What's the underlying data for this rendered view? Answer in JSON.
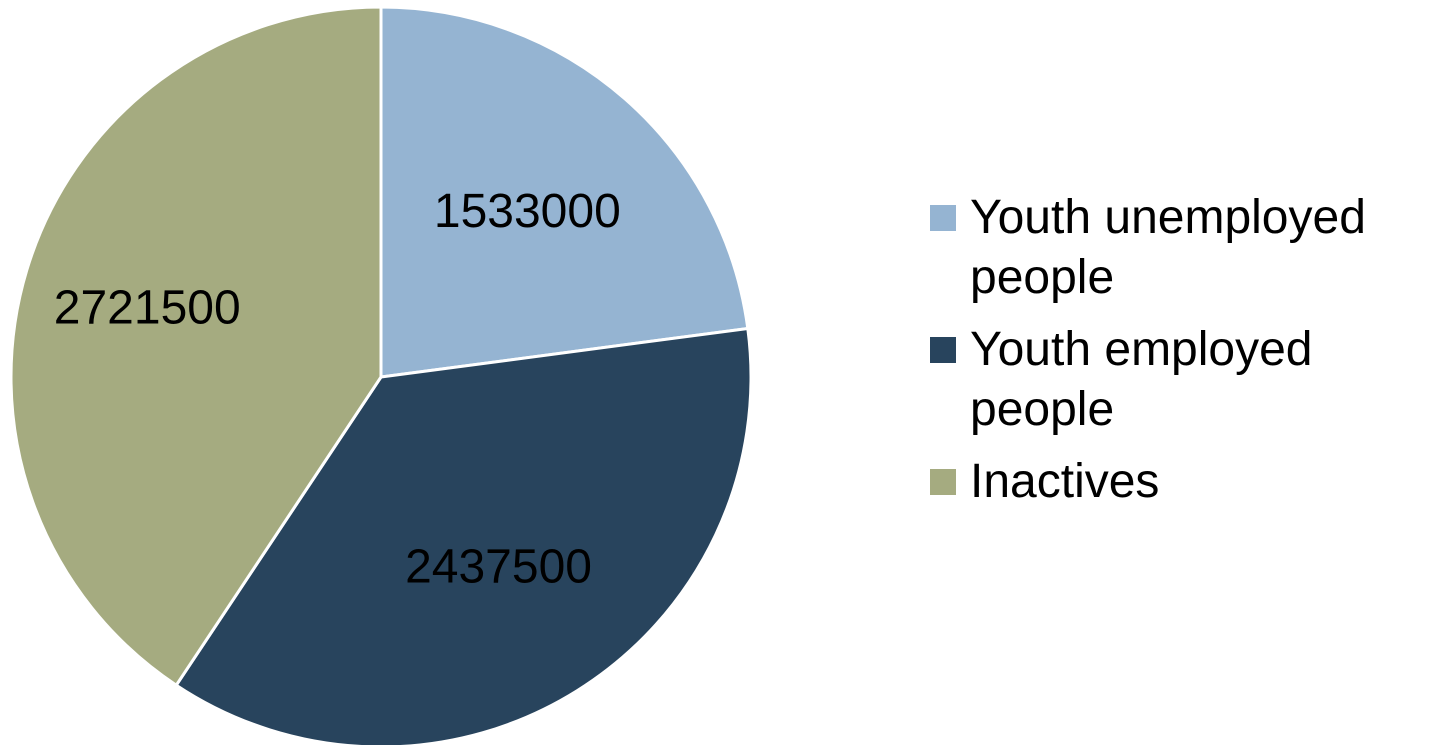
{
  "chart_data": {
    "type": "pie",
    "title": "",
    "categories": [
      "Youth unemployed people",
      "Youth employed people",
      "Inactives"
    ],
    "values": [
      1533000,
      2437500,
      2721500
    ],
    "data_labels": [
      "1533000",
      "2437500",
      "2721500"
    ],
    "colors": [
      "#95b4d2",
      "#28445d",
      "#a5ab80"
    ],
    "start_angle_deg": 0,
    "direction": "clockwise",
    "legend_position": "right"
  }
}
